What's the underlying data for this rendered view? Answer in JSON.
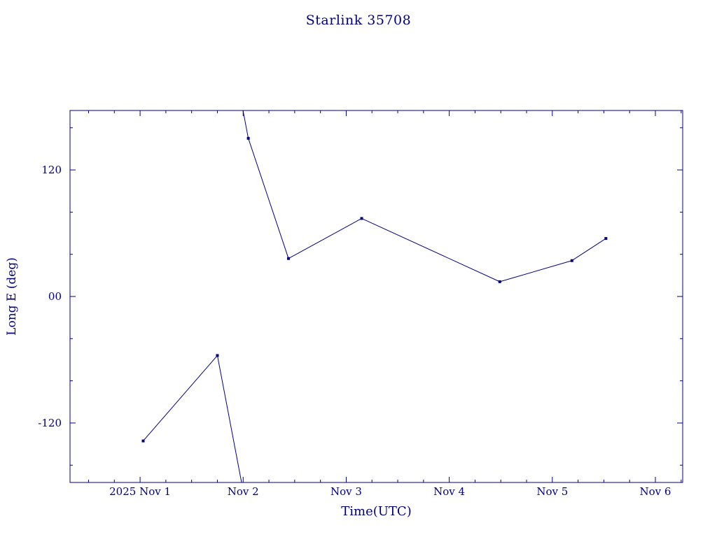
{
  "page": {
    "background": "#ffffff"
  },
  "colors": {
    "plot": "#000080",
    "text": "#000080"
  },
  "chart_data": {
    "type": "line",
    "title": "Starlink 35708",
    "xlabel": "Time(UTC)",
    "ylabel": "Long E (deg)",
    "x_axis_unit": "days relative to tick '2025 Nov 1'",
    "x_range": [
      -0.68,
      5.265
    ],
    "y_range": [
      -176.4,
      176.4
    ],
    "x_ticks": [
      {
        "t": 0,
        "label": "2025 Nov 1"
      },
      {
        "t": 1,
        "label": "Nov 2"
      },
      {
        "t": 2,
        "label": "Nov 3"
      },
      {
        "t": 3,
        "label": "Nov 4"
      },
      {
        "t": 4,
        "label": "Nov 5"
      },
      {
        "t": 5,
        "label": "Nov 6"
      }
    ],
    "y_ticks": [
      {
        "v": 120,
        "label": "120"
      },
      {
        "v": 0,
        "label": "00"
      },
      {
        "v": -120,
        "label": "-120"
      }
    ],
    "x_minor_step": 0.25,
    "y_minor_step": 40,
    "grid": false,
    "legend": "none",
    "marker": "filled-square",
    "wrap_threshold": 180,
    "points": [
      {
        "t": 0.03,
        "v": -137
      },
      {
        "t": 0.75,
        "v": -56
      },
      {
        "t": 1.05,
        "v": 150
      },
      {
        "t": 1.44,
        "v": 36
      },
      {
        "t": 2.15,
        "v": 74
      },
      {
        "t": 3.49,
        "v": 14
      },
      {
        "t": 4.19,
        "v": 34
      },
      {
        "t": 4.52,
        "v": 55
      }
    ]
  }
}
